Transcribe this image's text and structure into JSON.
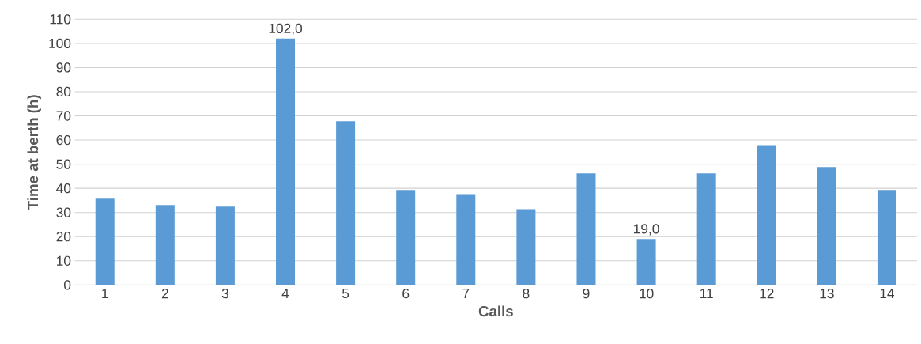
{
  "chart_data": {
    "type": "bar",
    "xlabel": "Calls",
    "ylabel": "Time at berth (h)",
    "categories": [
      "1",
      "2",
      "3",
      "4",
      "5",
      "6",
      "7",
      "8",
      "9",
      "10",
      "11",
      "12",
      "13",
      "14"
    ],
    "values": [
      35.7,
      33.1,
      32.4,
      102.0,
      67.8,
      39.3,
      37.6,
      31.4,
      46.2,
      19.0,
      46.2,
      57.9,
      48.8,
      39.3
    ],
    "value_labels": [
      null,
      null,
      null,
      "102,0",
      null,
      null,
      null,
      null,
      null,
      "19,0",
      null,
      null,
      null,
      null
    ],
    "color": "#5b9bd5",
    "ylim": [
      0,
      110
    ],
    "yticks": [
      0,
      10,
      20,
      30,
      40,
      50,
      60,
      70,
      80,
      90,
      100,
      110
    ],
    "grid": "y"
  }
}
